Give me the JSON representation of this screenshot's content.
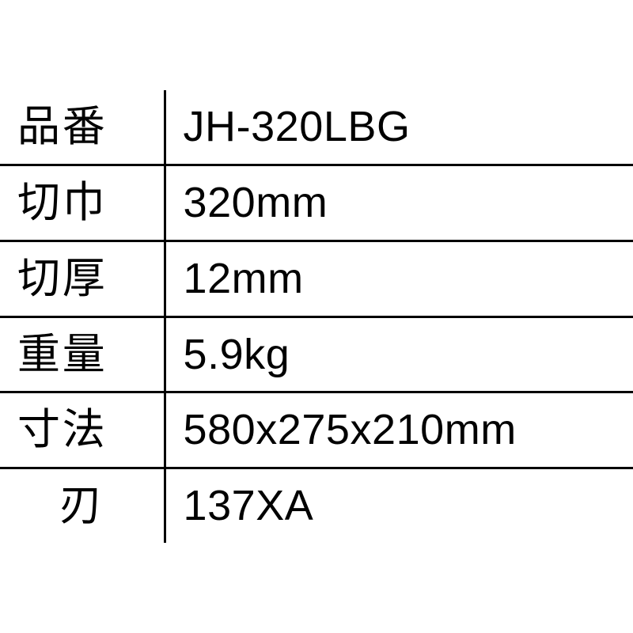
{
  "spec_table": {
    "type": "table",
    "background_color": "#ffffff",
    "text_color": "#000000",
    "border_color": "#000000",
    "border_width": 3,
    "label_fontsize": 54,
    "value_fontsize": 54,
    "label_column_width_pct": 26,
    "value_column_width_pct": 74,
    "row_padding_vertical": 14,
    "rows": [
      {
        "label": "品番",
        "value": "JH-320LBG",
        "label_centered": false
      },
      {
        "label": "切巾",
        "value": "320mm",
        "label_centered": false
      },
      {
        "label": "切厚",
        "value": "12mm",
        "label_centered": false
      },
      {
        "label": "重量",
        "value": "5.9kg",
        "label_centered": false
      },
      {
        "label": "寸法",
        "value": "580x275x210mm",
        "label_centered": false
      },
      {
        "label": "刃",
        "value": "137XA",
        "label_centered": true
      }
    ]
  }
}
